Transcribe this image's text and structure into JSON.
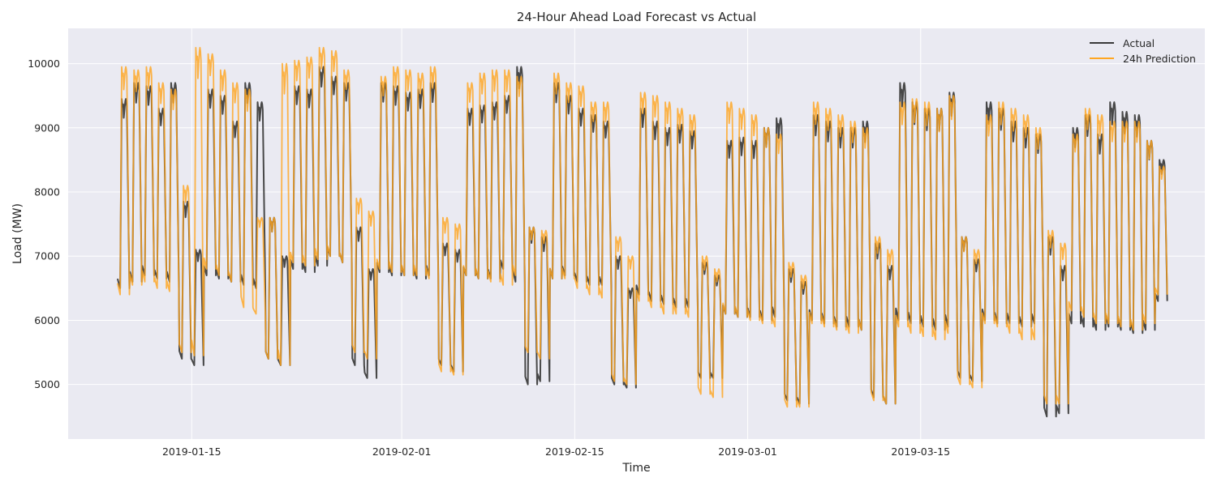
{
  "chart_data": {
    "type": "line",
    "title": "24-Hour Ahead Load Forecast vs Actual",
    "xlabel": "Time",
    "ylabel": "Load (MW)",
    "x_range": [
      "2019-01-05",
      "2019-04-07"
    ],
    "ylim": [
      4150,
      10550
    ],
    "x_ticks": [
      {
        "date": "2019-01-15",
        "label": "2019-01-15"
      },
      {
        "date": "2019-02-01",
        "label": "2019-02-01"
      },
      {
        "date": "2019-02-15",
        "label": "2019-02-15"
      },
      {
        "date": "2019-03-01",
        "label": "2019-03-01"
      },
      {
        "date": "2019-03-15",
        "label": "2019-03-15"
      }
    ],
    "y_ticks": [
      5000,
      6000,
      7000,
      8000,
      9000,
      10000
    ],
    "y_tick_labels": [
      "5000",
      "6000",
      "7000",
      "8000",
      "9000",
      "10000"
    ],
    "grid": true,
    "legend_position": "top-right",
    "background_color": "#eaeaf2",
    "series": [
      {
        "name": "Actual",
        "color": "#3a3a3a",
        "x": [
          "2019-01-09",
          "2019-01-10",
          "2019-01-11",
          "2019-01-12",
          "2019-01-13",
          "2019-01-14",
          "2019-01-15",
          "2019-01-16",
          "2019-01-17",
          "2019-01-18",
          "2019-01-19",
          "2019-01-20",
          "2019-01-21",
          "2019-01-22",
          "2019-01-23",
          "2019-01-24",
          "2019-01-25",
          "2019-01-26",
          "2019-01-27",
          "2019-01-28",
          "2019-01-29",
          "2019-01-30",
          "2019-01-31",
          "2019-02-01",
          "2019-02-02",
          "2019-02-03",
          "2019-02-04",
          "2019-02-05",
          "2019-02-06",
          "2019-02-07",
          "2019-02-08",
          "2019-02-09",
          "2019-02-10",
          "2019-02-11",
          "2019-02-12",
          "2019-02-13",
          "2019-02-14",
          "2019-02-15",
          "2019-02-16",
          "2019-02-17",
          "2019-02-18",
          "2019-02-19",
          "2019-02-20",
          "2019-02-21",
          "2019-02-22",
          "2019-02-23",
          "2019-02-24",
          "2019-02-25",
          "2019-02-26",
          "2019-02-27",
          "2019-02-28",
          "2019-03-01",
          "2019-03-02",
          "2019-03-03",
          "2019-03-04",
          "2019-03-05",
          "2019-03-06",
          "2019-03-07",
          "2019-03-08",
          "2019-03-09",
          "2019-03-10",
          "2019-03-11",
          "2019-03-12",
          "2019-03-13",
          "2019-03-14",
          "2019-03-15",
          "2019-03-16",
          "2019-03-17",
          "2019-03-18",
          "2019-03-19",
          "2019-03-20",
          "2019-03-21",
          "2019-03-22",
          "2019-03-23",
          "2019-03-24",
          "2019-03-25",
          "2019-03-26",
          "2019-03-27",
          "2019-03-28",
          "2019-03-29",
          "2019-03-30",
          "2019-03-31",
          "2019-04-01",
          "2019-04-02",
          "2019-04-03"
        ],
        "daily_peak": [
          9450,
          9700,
          9650,
          9300,
          9700,
          7850,
          7100,
          9600,
          9500,
          9100,
          9700,
          9400,
          7600,
          7000,
          9650,
          9600,
          9950,
          9800,
          9700,
          7450,
          6800,
          9700,
          9650,
          9550,
          9600,
          9700,
          7200,
          7100,
          9300,
          9350,
          9400,
          9500,
          9950,
          7450,
          7300,
          9700,
          9500,
          9300,
          9200,
          9100,
          7000,
          6500,
          9300,
          9100,
          9000,
          9050,
          8950,
          6900,
          6700,
          8800,
          8850,
          8800,
          9000,
          9150,
          6800,
          6600,
          9200,
          9100,
          9000,
          9000,
          9100,
          7200,
          6850,
          9700,
          9400,
          9300,
          9300,
          9550,
          7300,
          6950,
          9400,
          9300,
          9100,
          9000,
          8900,
          7300,
          6850,
          9000,
          9200,
          8900,
          9400,
          9250,
          9200,
          8800,
          8500
        ],
        "daily_trough": [
          6500,
          6600,
          6700,
          6650,
          6600,
          5400,
          5300,
          6700,
          6650,
          6600,
          6550,
          6500,
          5400,
          5300,
          6800,
          6750,
          6850,
          7000,
          6900,
          5300,
          5100,
          6750,
          6700,
          6700,
          6650,
          6700,
          5300,
          5200,
          6700,
          6650,
          6650,
          6800,
          6600,
          5000,
          5050,
          6650,
          6700,
          6600,
          6550,
          6550,
          5000,
          4950,
          6400,
          6300,
          6250,
          6200,
          6200,
          5100,
          5100,
          6100,
          6050,
          6050,
          6000,
          6050,
          4750,
          4700,
          6000,
          5950,
          5900,
          5900,
          5850,
          4800,
          4700,
          6000,
          5950,
          5900,
          5850,
          5900,
          5100,
          5050,
          6000,
          5950,
          5950,
          5900,
          5950,
          4500,
          4550,
          5950,
          5900,
          5850,
          5900,
          5850,
          5800,
          5850,
          6300
        ]
      },
      {
        "name": "24h Prediction",
        "color": "#ffa621",
        "x": [
          "2019-01-09",
          "2019-01-10",
          "2019-01-11",
          "2019-01-12",
          "2019-01-13",
          "2019-01-14",
          "2019-01-15",
          "2019-01-16",
          "2019-01-17",
          "2019-01-18",
          "2019-01-19",
          "2019-01-20",
          "2019-01-21",
          "2019-01-22",
          "2019-01-23",
          "2019-01-24",
          "2019-01-25",
          "2019-01-26",
          "2019-01-27",
          "2019-01-28",
          "2019-01-29",
          "2019-01-30",
          "2019-01-31",
          "2019-02-01",
          "2019-02-02",
          "2019-02-03",
          "2019-02-04",
          "2019-02-05",
          "2019-02-06",
          "2019-02-07",
          "2019-02-08",
          "2019-02-09",
          "2019-02-10",
          "2019-02-11",
          "2019-02-12",
          "2019-02-13",
          "2019-02-14",
          "2019-02-15",
          "2019-02-16",
          "2019-02-17",
          "2019-02-18",
          "2019-02-19",
          "2019-02-20",
          "2019-02-21",
          "2019-02-22",
          "2019-02-23",
          "2019-02-24",
          "2019-02-25",
          "2019-02-26",
          "2019-02-27",
          "2019-02-28",
          "2019-03-01",
          "2019-03-02",
          "2019-03-03",
          "2019-03-04",
          "2019-03-05",
          "2019-03-06",
          "2019-03-07",
          "2019-03-08",
          "2019-03-09",
          "2019-03-10",
          "2019-03-11",
          "2019-03-12",
          "2019-03-13",
          "2019-03-14",
          "2019-03-15",
          "2019-03-16",
          "2019-03-17",
          "2019-03-18",
          "2019-03-19",
          "2019-03-20",
          "2019-03-21",
          "2019-03-22",
          "2019-03-23",
          "2019-03-24",
          "2019-03-25",
          "2019-03-26",
          "2019-03-27",
          "2019-03-28",
          "2019-03-29",
          "2019-03-30",
          "2019-03-31",
          "2019-04-01",
          "2019-04-02",
          "2019-04-03"
        ],
        "daily_peak": [
          9950,
          9900,
          9950,
          9700,
          9600,
          8100,
          10250,
          10150,
          9900,
          9700,
          9600,
          7600,
          7600,
          10000,
          10050,
          10100,
          10250,
          10200,
          9900,
          7900,
          7700,
          9800,
          9950,
          9900,
          9850,
          9950,
          7600,
          7500,
          9700,
          9850,
          9900,
          9900,
          9800,
          7450,
          7400,
          9850,
          9700,
          9650,
          9400,
          9400,
          7300,
          7000,
          9550,
          9500,
          9400,
          9300,
          9200,
          7000,
          6800,
          9400,
          9300,
          9200,
          9000,
          8900,
          6900,
          6700,
          9400,
          9300,
          9200,
          9100,
          9000,
          7300,
          7100,
          9400,
          9450,
          9400,
          9300,
          9500,
          7300,
          7100,
          9200,
          9400,
          9300,
          9200,
          9000,
          7400,
          7200,
          8900,
          9300,
          9200,
          9100,
          9100,
          9100,
          8800,
          8400
        ],
        "daily_trough": [
          6400,
          6550,
          6600,
          6500,
          6450,
          5500,
          5450,
          6800,
          6700,
          6600,
          6200,
          6100,
          5400,
          5300,
          6900,
          6850,
          6950,
          7000,
          6900,
          5500,
          5400,
          6800,
          6750,
          6700,
          6700,
          6650,
          5200,
          5150,
          6700,
          6650,
          6600,
          6550,
          6700,
          5500,
          5400,
          6650,
          6650,
          6500,
          6400,
          6350,
          5050,
          5000,
          6300,
          6200,
          6100,
          6100,
          6050,
          4850,
          4800,
          6100,
          6050,
          6000,
          5950,
          5900,
          4650,
          4650,
          5950,
          5900,
          5850,
          5800,
          5850,
          4750,
          4700,
          5900,
          5800,
          5750,
          5700,
          5800,
          5000,
          4950,
          5950,
          5900,
          5800,
          5700,
          5700,
          4700,
          4700,
          6150,
          6050,
          5950,
          5950,
          5900,
          5850,
          5950,
          6400
        ]
      }
    ]
  }
}
